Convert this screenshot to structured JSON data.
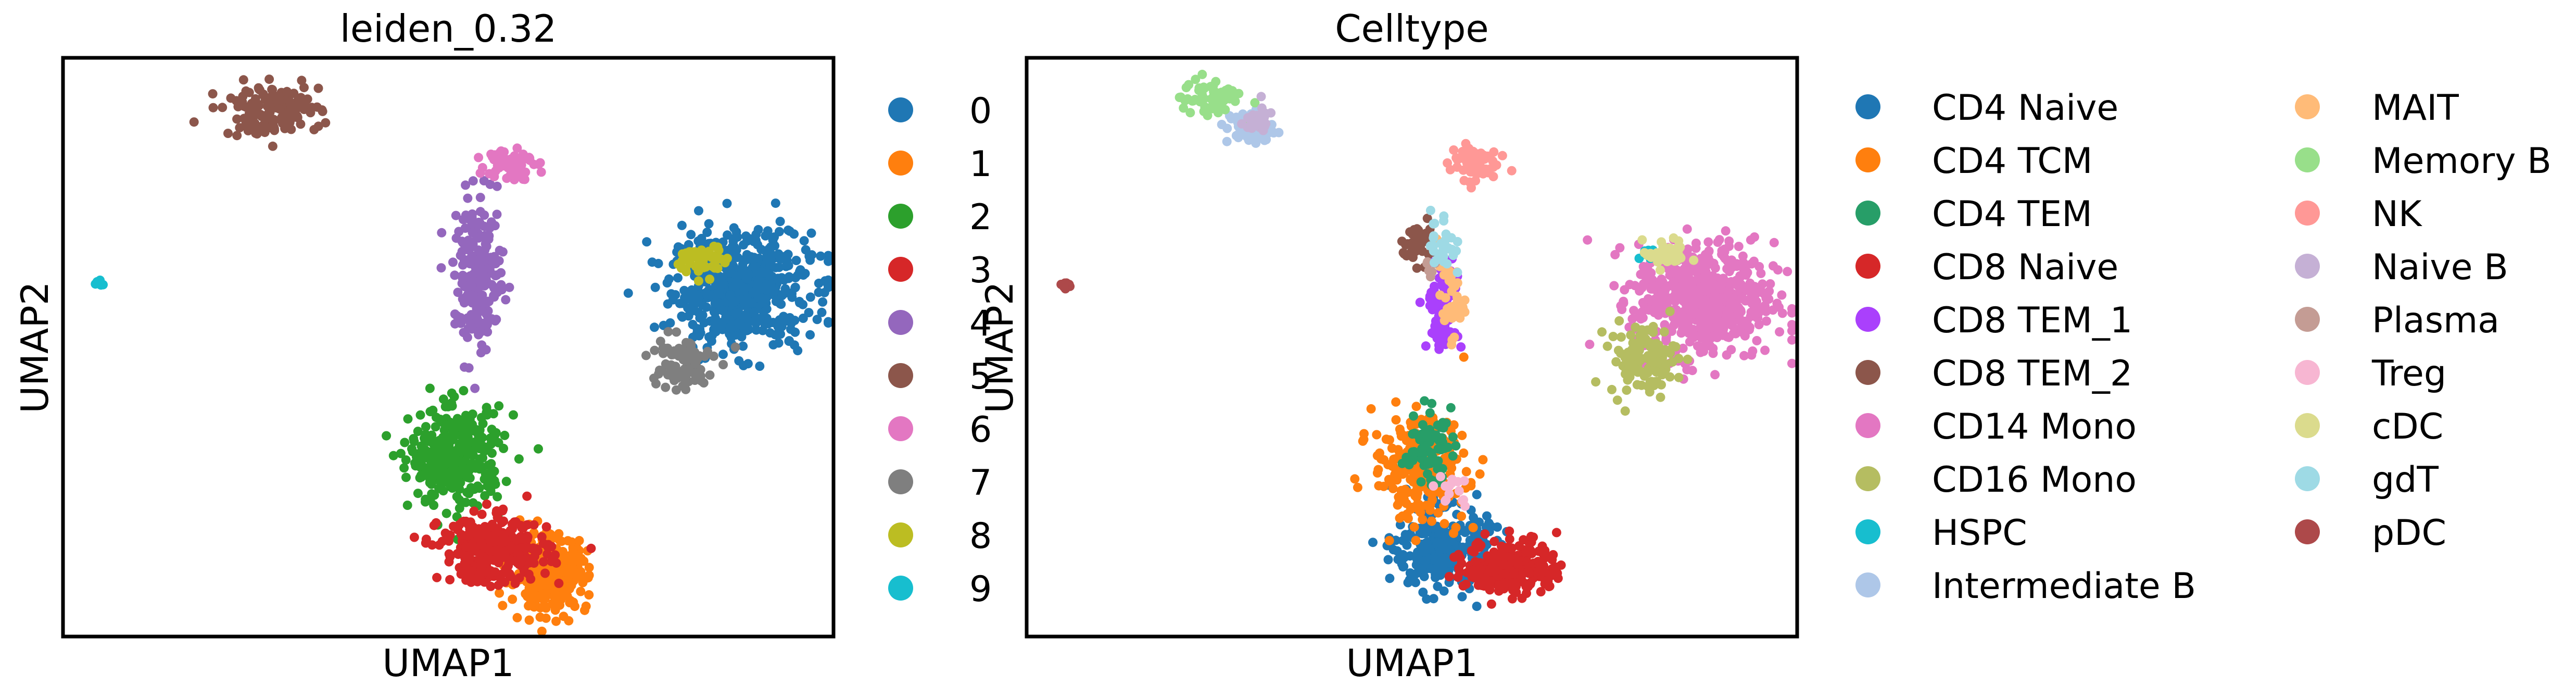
{
  "chart_data": [
    {
      "type": "scatter",
      "title": "leiden_0.32",
      "xlabel": "UMAP1",
      "ylabel": "UMAP2",
      "xlim": [
        0,
        100
      ],
      "ylim": [
        0,
        100
      ],
      "grid": false,
      "ticks": false,
      "legend_placement": "right",
      "series": [
        {
          "name": "0",
          "color": "#1f77b4",
          "clusters": [
            {
              "cx": 88,
              "cy": 60,
              "sx": 4.5,
              "sy": 5.0,
              "n": 560
            }
          ]
        },
        {
          "name": "1",
          "color": "#ff7f0e",
          "clusters": [
            {
              "cx": 63,
              "cy": 11,
              "sx": 2.5,
              "sy": 3.2,
              "n": 340
            }
          ]
        },
        {
          "name": "2",
          "color": "#2ca02c",
          "clusters": [
            {
              "cx": 51,
              "cy": 31,
              "sx": 3.0,
              "sy": 4.2,
              "n": 340
            }
          ]
        },
        {
          "name": "3",
          "color": "#d62728",
          "clusters": [
            {
              "cx": 56,
              "cy": 15,
              "sx": 3.5,
              "sy": 2.8,
              "n": 320
            }
          ]
        },
        {
          "name": "4",
          "color": "#9467bd",
          "clusters": [
            {
              "cx": 54,
              "cy": 62,
              "sx": 1.6,
              "sy": 6.5,
              "n": 200
            }
          ]
        },
        {
          "name": "5",
          "color": "#8c564b",
          "clusters": [
            {
              "cx": 27,
              "cy": 91,
              "sx": 3.2,
              "sy": 2.2,
              "n": 140
            }
          ]
        },
        {
          "name": "6",
          "color": "#e377c2",
          "clusters": [
            {
              "cx": 58,
              "cy": 82,
              "sx": 1.5,
              "sy": 1.5,
              "n": 70
            }
          ]
        },
        {
          "name": "7",
          "color": "#7f7f7f",
          "clusters": [
            {
              "cx": 80,
              "cy": 47,
              "sx": 2.2,
              "sy": 2.5,
              "n": 90
            }
          ]
        },
        {
          "name": "8",
          "color": "#bcbd22",
          "clusters": [
            {
              "cx": 83,
              "cy": 65,
              "sx": 1.5,
              "sy": 1.3,
              "n": 55
            }
          ]
        },
        {
          "name": "9",
          "color": "#17becf",
          "clusters": [
            {
              "cx": 5,
              "cy": 61,
              "sx": 0.5,
              "sy": 0.7,
              "n": 8
            }
          ]
        }
      ]
    },
    {
      "type": "scatter",
      "title": "Celltype",
      "xlabel": "UMAP1",
      "ylabel": "UMAP2",
      "xlim": [
        0,
        100
      ],
      "ylim": [
        0,
        100
      ],
      "grid": false,
      "ticks": false,
      "legend_placement": "right",
      "series": [
        {
          "name": "CD4 Naive",
          "color": "#1f77b4",
          "clusters": [
            {
              "cx": 54,
              "cy": 15,
              "sx": 3.0,
              "sy": 3.5,
              "n": 260
            }
          ]
        },
        {
          "name": "CD4 TCM",
          "color": "#ff7f0e",
          "clusters": [
            {
              "cx": 51,
              "cy": 29,
              "sx": 3.0,
              "sy": 4.5,
              "n": 260
            }
          ]
        },
        {
          "name": "CD4 TEM",
          "color": "#279e68",
          "clusters": [
            {
              "cx": 52,
              "cy": 33,
              "sx": 1.5,
              "sy": 3.0,
              "n": 70
            }
          ]
        },
        {
          "name": "CD8 Naive",
          "color": "#d62728",
          "clusters": [
            {
              "cx": 63,
              "cy": 12,
              "sx": 3.0,
              "sy": 2.5,
              "n": 230
            }
          ]
        },
        {
          "name": "CD8 TEM_1",
          "color": "#aa40fc",
          "clusters": [
            {
              "cx": 54,
              "cy": 57,
              "sx": 1.0,
              "sy": 4.0,
              "n": 100
            }
          ]
        },
        {
          "name": "CD8 TEM_2",
          "color": "#8c564b",
          "clusters": [
            {
              "cx": 51,
              "cy": 68,
              "sx": 1.2,
              "sy": 1.8,
              "n": 40
            }
          ]
        },
        {
          "name": "CD14 Mono",
          "color": "#e377c2",
          "clusters": [
            {
              "cx": 88,
              "cy": 58,
              "sx": 4.5,
              "sy": 5.0,
              "n": 560
            }
          ]
        },
        {
          "name": "CD16 Mono",
          "color": "#b5bd61",
          "clusters": [
            {
              "cx": 80,
              "cy": 48,
              "sx": 2.2,
              "sy": 3.0,
              "n": 110
            }
          ]
        },
        {
          "name": "HSPC",
          "color": "#17becf",
          "clusters": [
            {
              "cx": 81,
              "cy": 66,
              "sx": 0.8,
              "sy": 0.6,
              "n": 10
            }
          ]
        },
        {
          "name": "Intermediate B",
          "color": "#aec7e8",
          "clusters": [
            {
              "cx": 29,
              "cy": 88,
              "sx": 1.5,
              "sy": 1.5,
              "n": 60
            }
          ]
        },
        {
          "name": "MAIT",
          "color": "#ffbb78",
          "clusters": [
            {
              "cx": 55,
              "cy": 58,
              "sx": 0.9,
              "sy": 3.0,
              "n": 40
            }
          ]
        },
        {
          "name": "Memory B",
          "color": "#98df8a",
          "clusters": [
            {
              "cx": 24,
              "cy": 93,
              "sx": 2.0,
              "sy": 1.8,
              "n": 60
            }
          ]
        },
        {
          "name": "NK",
          "color": "#ff9896",
          "clusters": [
            {
              "cx": 58,
              "cy": 82,
              "sx": 1.5,
              "sy": 1.5,
              "n": 70
            }
          ]
        },
        {
          "name": "Naive B",
          "color": "#c5b0d5",
          "clusters": [
            {
              "cx": 30,
              "cy": 89,
              "sx": 1.2,
              "sy": 1.2,
              "n": 30
            }
          ]
        },
        {
          "name": "Plasma",
          "color": "#c49c94",
          "clusters": [
            {
              "cx": 52,
              "cy": 64,
              "sx": 0.6,
              "sy": 1.0,
              "n": 8
            }
          ]
        },
        {
          "name": "Treg",
          "color": "#f7b6d2",
          "clusters": [
            {
              "cx": 55,
              "cy": 25,
              "sx": 1.2,
              "sy": 1.5,
              "n": 15
            }
          ]
        },
        {
          "name": "cDC",
          "color": "#dbdb8d",
          "clusters": [
            {
              "cx": 83,
              "cy": 66,
              "sx": 1.5,
              "sy": 1.2,
              "n": 40
            }
          ]
        },
        {
          "name": "gdT",
          "color": "#9edae5",
          "clusters": [
            {
              "cx": 54,
              "cy": 68,
              "sx": 0.8,
              "sy": 3.0,
              "n": 30
            }
          ]
        },
        {
          "name": "pDC",
          "color": "#ad494a",
          "clusters": [
            {
              "cx": 5,
              "cy": 61,
              "sx": 0.4,
              "sy": 0.7,
              "n": 8
            }
          ]
        }
      ]
    }
  ]
}
